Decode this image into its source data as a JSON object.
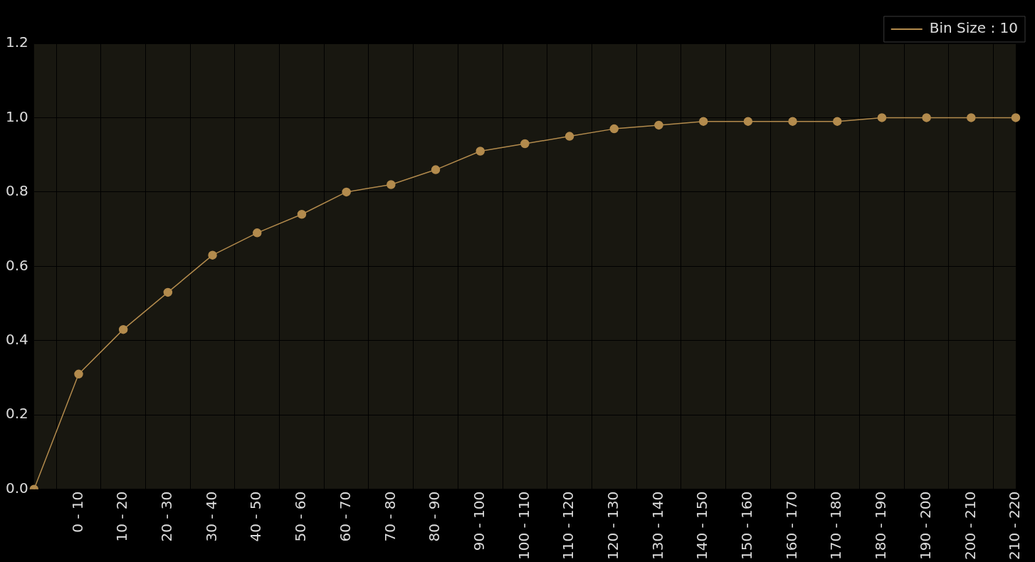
{
  "chart_data": {
    "type": "line",
    "ylim": [
      0,
      1.2
    ],
    "categories": [
      null,
      "0 - 10",
      "10 - 20",
      "20 - 30",
      "30 - 40",
      "40 - 50",
      "50 - 60",
      "60 - 70",
      "70 - 80",
      "80 - 90",
      "90 - 100",
      "100 - 110",
      "110 - 120",
      "120 - 130",
      "130 - 140",
      "140 - 150",
      "150 - 160",
      "160 - 170",
      "170 - 180",
      "180 - 190",
      "190 - 200",
      "200 - 210",
      "210 - 220"
    ],
    "yticks": [
      {
        "value": 0,
        "label": "0.0"
      },
      0.2,
      0.4,
      0.6,
      0.8,
      {
        "value": 1,
        "label": "1.0"
      },
      1.2
    ],
    "series": [
      {
        "name": "Bin Size : 10",
        "color": "#b38b4d",
        "values": [
          0,
          0.31,
          0.43,
          0.53,
          0.63,
          0.69,
          0.74,
          0.8,
          0.82,
          0.86,
          0.91,
          0.93,
          0.95,
          0.97,
          0.98,
          0.99,
          0.99,
          0.99,
          0.99,
          1.0,
          1.0,
          1.0,
          1.0
        ]
      }
    ],
    "grid": true,
    "legend": "top right",
    "marker": "circle",
    "line_style": "solid"
  }
}
